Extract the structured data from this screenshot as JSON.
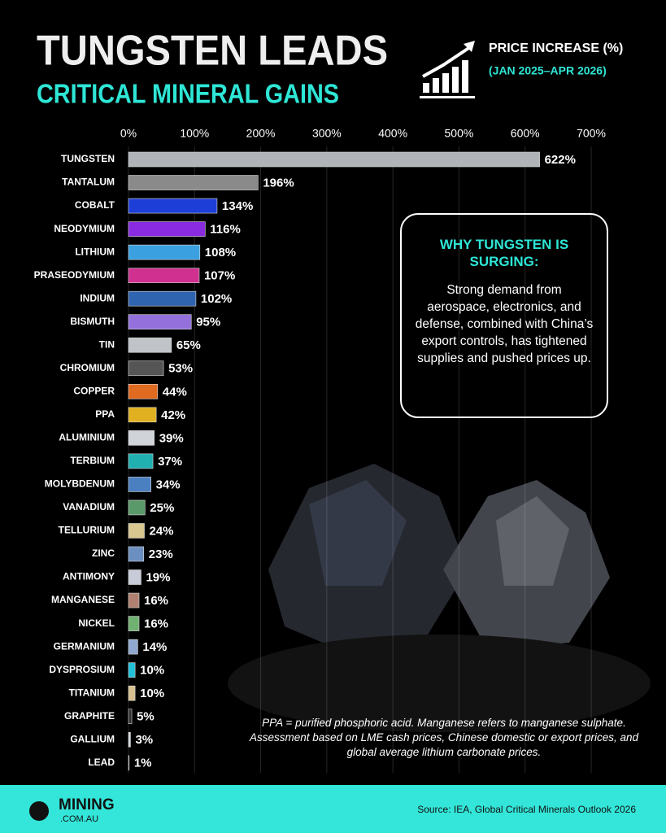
{
  "chart_data": {
    "type": "barh",
    "title": "TUNGSTEN LEADS",
    "subtitle": "CRITICAL MINERAL GAINS",
    "xlabel": "PRICE INCREASE (%)",
    "period": "(JAN 2025–APR 2026)",
    "categories": [
      "TUNGSTEN",
      "TANTALUM",
      "COBALT",
      "NEODYMIUM",
      "LITHIUM",
      "PRASEODYMIUM",
      "INDIUM",
      "BISMUTH",
      "TIN",
      "CHROMIUM",
      "COPPER",
      "PPA",
      "ALUMINIUM",
      "TERBIUM",
      "MOLYBDENUM",
      "VANADIUM",
      "TELLURIUM",
      "ZINC",
      "ANTIMONY",
      "MANGANESE",
      "NICKEL",
      "GERMANIUM",
      "DYSPROSIUM",
      "TITANIUM",
      "GRAPHITE",
      "GALLIUM",
      "LEAD"
    ],
    "values": [
      622,
      196,
      134,
      116,
      108,
      107,
      102,
      95,
      65,
      53,
      44,
      42,
      39,
      37,
      34,
      25,
      24,
      23,
      19,
      16,
      16,
      14,
      10,
      10,
      5,
      3,
      1
    ],
    "value_labels": [
      "622%",
      "196%",
      "134%",
      "116%",
      "108%",
      "107%",
      "102%",
      "95%",
      "65%",
      "53%",
      "44%",
      "42%",
      "39%",
      "37%",
      "34%",
      "25%",
      "24%",
      "23%",
      "19%",
      "16%",
      "16%",
      "14%",
      "10%",
      "10%",
      "5%",
      "3%",
      "1%"
    ],
    "colors": [
      "#b0b4b8",
      "#8a8a8a",
      "#1d3fd8",
      "#8a2be2",
      "#3aa0e0",
      "#d0308f",
      "#2f64b0",
      "#9370db",
      "#c0c4c8",
      "#555555",
      "#e06a20",
      "#e0b020",
      "#d0d4d8",
      "#20b0b0",
      "#4a7fc0",
      "#5a9a6a",
      "#d8c890",
      "#6a8fc0",
      "#c8ccd8",
      "#b08070",
      "#70b070",
      "#90a8d0",
      "#20c0d8",
      "#d8c090",
      "#333333",
      "#d0d8e0",
      "#555555"
    ],
    "xlim": [
      0,
      700
    ],
    "xticks": [
      {
        "value": 0,
        "label": "0%"
      },
      {
        "value": 100,
        "label": "100%"
      },
      {
        "value": 200,
        "label": "200%"
      },
      {
        "value": 300,
        "label": "300%"
      },
      {
        "value": 400,
        "label": "400%"
      },
      {
        "value": 500,
        "label": "500%"
      },
      {
        "value": 600,
        "label": "600%"
      },
      {
        "value": 700,
        "label": "700%"
      }
    ],
    "grid": true,
    "annotation": {
      "title": "WHY TUNGSTEN IS SURGING:",
      "text": "Strong demand from aerospace, electronics, and defense, combined with China’s export controls, has tightened supplies and pushed prices up."
    },
    "footnote": "PPA = purified phosphoric acid. Manganese refers to manganese sulphate. Assessment based on LME cash prices, Chinese domestic or export prices, and global average lithium carbonate prices.",
    "source": "Source: IEA, Global Critical Minerals Outlook 2026"
  },
  "branding": {
    "logo": "MINING",
    "logo_sub": ".COM.AU"
  }
}
